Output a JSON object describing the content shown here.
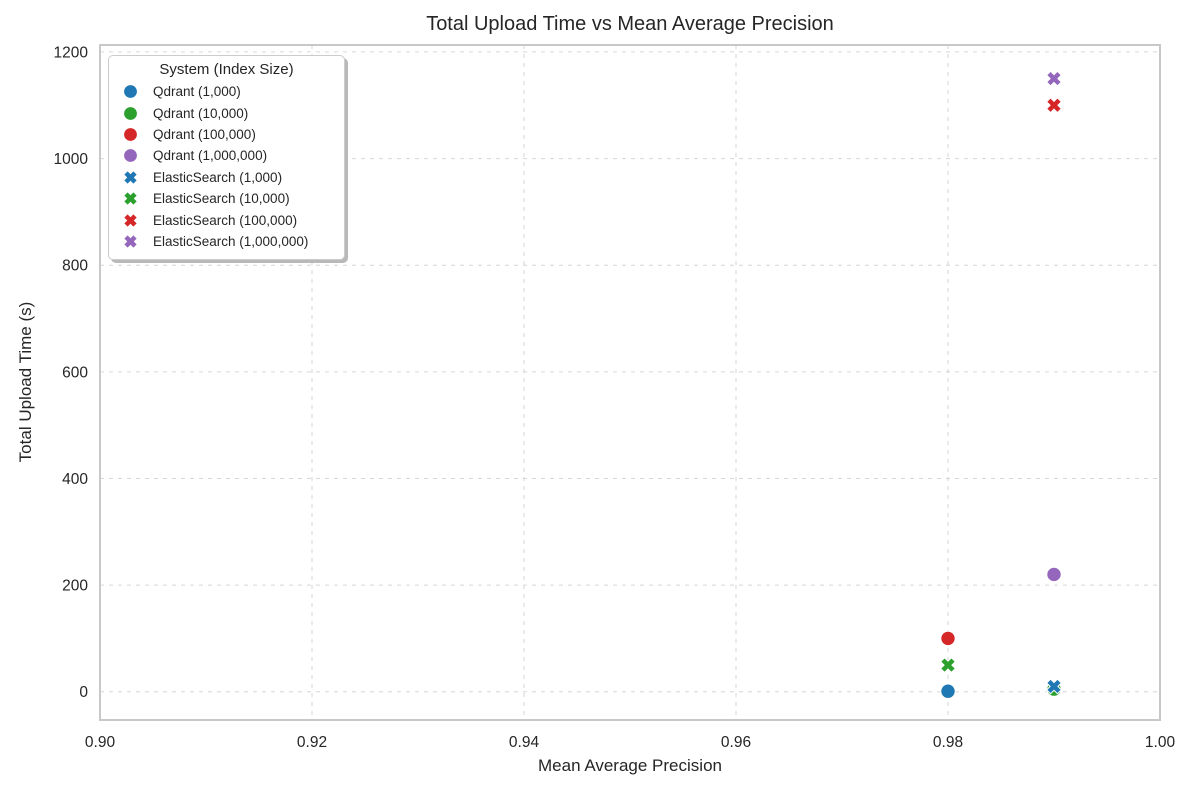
{
  "chart_data": {
    "type": "scatter",
    "title": "Total Upload Time vs Mean Average Precision",
    "xlabel": "Mean Average Precision",
    "ylabel": "Total Upload Time (s)",
    "legend_title": "System (Index Size)",
    "legend_position": "upper left",
    "grid": true,
    "grid_style": "dashed",
    "xlim": [
      0.9,
      1.0
    ],
    "ylim": [
      -53,
      1213
    ],
    "xticks": [
      0.9,
      0.92,
      0.94,
      0.96,
      0.98,
      1.0
    ],
    "xtick_labels": [
      "0.90",
      "0.92",
      "0.94",
      "0.96",
      "0.98",
      "1.00"
    ],
    "yticks": [
      0,
      200,
      400,
      600,
      800,
      1000,
      1200
    ],
    "ytick_labels": [
      "0",
      "200",
      "400",
      "600",
      "800",
      "1000",
      "1200"
    ],
    "series": [
      {
        "name": "Qdrant (1,000)",
        "marker": "circle",
        "color": "#1f77b4",
        "points": [
          [
            0.98,
            1
          ]
        ]
      },
      {
        "name": "Qdrant (10,000)",
        "marker": "circle",
        "color": "#2ca02c",
        "points": [
          [
            0.99,
            5
          ]
        ]
      },
      {
        "name": "Qdrant (100,000)",
        "marker": "circle",
        "color": "#d62728",
        "points": [
          [
            0.98,
            100
          ]
        ]
      },
      {
        "name": "Qdrant (1,000,000)",
        "marker": "circle",
        "color": "#9467bd",
        "points": [
          [
            0.99,
            220
          ]
        ]
      },
      {
        "name": "ElasticSearch (1,000)",
        "marker": "x",
        "color": "#1f77b4",
        "points": [
          [
            0.99,
            10
          ]
        ]
      },
      {
        "name": "ElasticSearch (10,000)",
        "marker": "x",
        "color": "#2ca02c",
        "points": [
          [
            0.98,
            50
          ]
        ]
      },
      {
        "name": "ElasticSearch (100,000)",
        "marker": "x",
        "color": "#d62728",
        "points": [
          [
            0.99,
            1100
          ]
        ]
      },
      {
        "name": "ElasticSearch (1,000,000)",
        "marker": "x",
        "color": "#9467bd",
        "points": [
          [
            0.99,
            1150
          ]
        ]
      }
    ],
    "style": {
      "spine_color": "#c8c8c8",
      "grid_color": "#d6d6d6",
      "text_color": "#262626",
      "marker_edge_color": "#ffffff"
    }
  }
}
